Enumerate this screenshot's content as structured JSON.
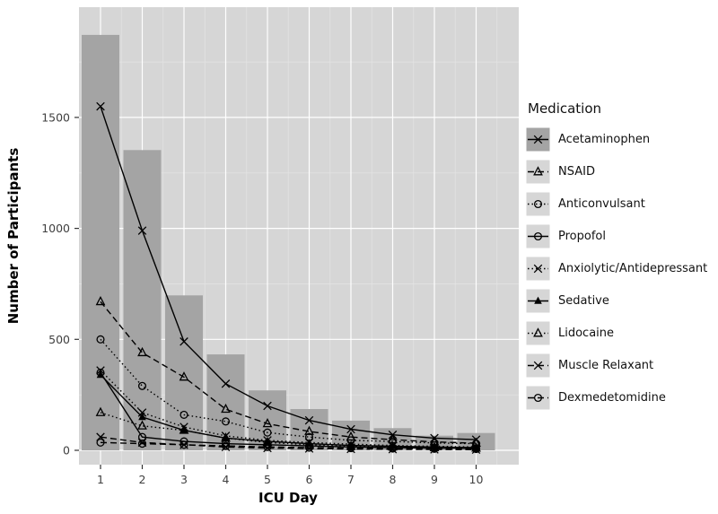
{
  "chart_data": {
    "type": "combo-bar-line",
    "title": "",
    "xlabel": "ICU Day",
    "ylabel": "Number of Participants",
    "legend_title": "Medication",
    "legend_position": "right",
    "grid": true,
    "categories": [
      1,
      2,
      3,
      4,
      5,
      6,
      7,
      8,
      9,
      10
    ],
    "ylim": [
      0,
      1900
    ],
    "yticks": [
      0,
      500,
      1000,
      1500
    ],
    "yticks_minor": [
      250,
      750,
      1250,
      1750
    ],
    "bars": {
      "name": "participants-in-icu-background-bars",
      "values": [
        1872,
        1353,
        698,
        432,
        270,
        186,
        134,
        100,
        66,
        78
      ]
    },
    "series": [
      {
        "name": "Acetaminophen",
        "marker": "x",
        "linetype": "solid",
        "key_fill": "#a4a4a4",
        "values": [
          1550,
          990,
          490,
          300,
          200,
          135,
          95,
          70,
          55,
          48
        ]
      },
      {
        "name": "NSAID",
        "marker": "triangle-open",
        "linetype": "dashed",
        "values": [
          670,
          440,
          330,
          185,
          120,
          85,
          60,
          48,
          38,
          32
        ]
      },
      {
        "name": "Anticonvulsant",
        "marker": "circle-open",
        "linetype": "dotted",
        "values": [
          500,
          290,
          160,
          130,
          80,
          60,
          45,
          40,
          33,
          30
        ]
      },
      {
        "name": "Propofol",
        "marker": "circle-open",
        "linetype": "solid",
        "values": [
          350,
          60,
          40,
          30,
          25,
          20,
          15,
          12,
          10,
          9
        ]
      },
      {
        "name": "Anxiolytic/Antidepressant",
        "marker": "x",
        "linetype": "dotted",
        "values": [
          360,
          170,
          105,
          65,
          45,
          35,
          28,
          22,
          18,
          15
        ]
      },
      {
        "name": "Sedative",
        "marker": "triangle-filled",
        "linetype": "solid",
        "values": [
          340,
          150,
          90,
          55,
          40,
          30,
          22,
          18,
          15,
          12
        ]
      },
      {
        "name": "Lidocaine",
        "marker": "triangle-open",
        "linetype": "dotted",
        "values": [
          170,
          110,
          90,
          55,
          35,
          25,
          18,
          15,
          12,
          10
        ]
      },
      {
        "name": "Muscle Relaxant",
        "marker": "x",
        "linetype": "dashed",
        "values": [
          60,
          35,
          25,
          15,
          10,
          8,
          6,
          5,
          4,
          3
        ]
      },
      {
        "name": "Dexmedetomidine",
        "marker": "circle-open",
        "linetype": "dashed",
        "values": [
          35,
          30,
          25,
          20,
          15,
          12,
          10,
          8,
          7,
          6
        ]
      }
    ],
    "colors": {
      "panel_bg": "#d6d6d6",
      "bar_fill": "#a4a4a4",
      "grid_major": "#ffffff",
      "grid_minor": "#e4e4e4",
      "line": "#000000",
      "legend_key_bg": "#d6d6d6",
      "text": "#111111"
    }
  }
}
